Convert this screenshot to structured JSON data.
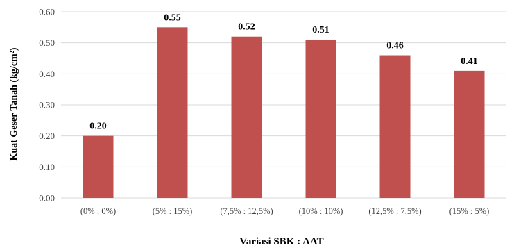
{
  "chart_data": {
    "type": "bar",
    "categories": [
      "(0% : 0%)",
      "(5% : 15%)",
      "(7,5% : 12,5%)",
      "(10% : 10%)",
      "(12,5% : 7,5%)",
      "(15% : 5%)"
    ],
    "values": [
      0.2,
      0.55,
      0.52,
      0.51,
      0.46,
      0.41
    ],
    "data_labels": [
      "0.20",
      "0.55",
      "0.52",
      "0.51",
      "0.46",
      "0.41"
    ],
    "y_ticks": [
      "0.00",
      "0.10",
      "0.20",
      "0.30",
      "0.40",
      "0.50",
      "0.60"
    ],
    "ylim": [
      0,
      0.6
    ],
    "title": "",
    "xlabel": "Variasi SBK : AAT",
    "ylabel": "Kuat Geser Tanah (kg/cm²)",
    "grid": true,
    "legend": "none",
    "bar_color": "#C0504D",
    "grid_color": "#D9D9D9"
  }
}
